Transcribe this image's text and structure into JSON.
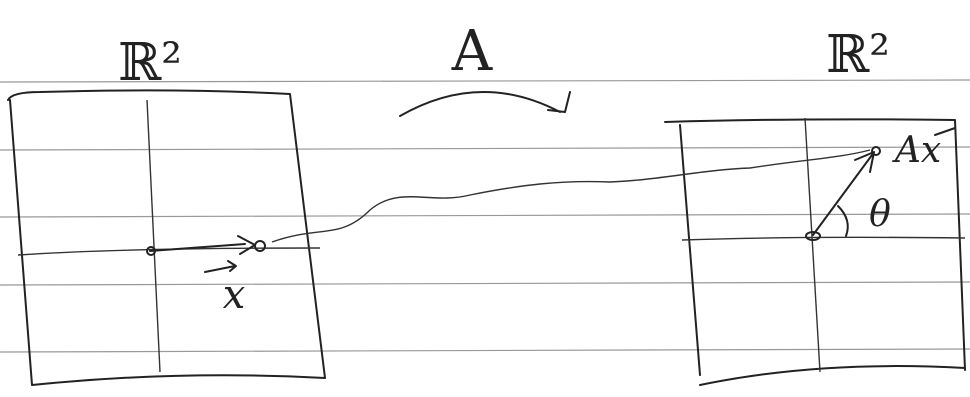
{
  "domain_left": {
    "label": "ℝ²"
  },
  "transform": {
    "label": "A"
  },
  "domain_right": {
    "label": "ℝ²"
  },
  "vector_x": {
    "label": "x"
  },
  "vector_ax": {
    "label": "Ax"
  },
  "angle": {
    "label": "θ"
  }
}
